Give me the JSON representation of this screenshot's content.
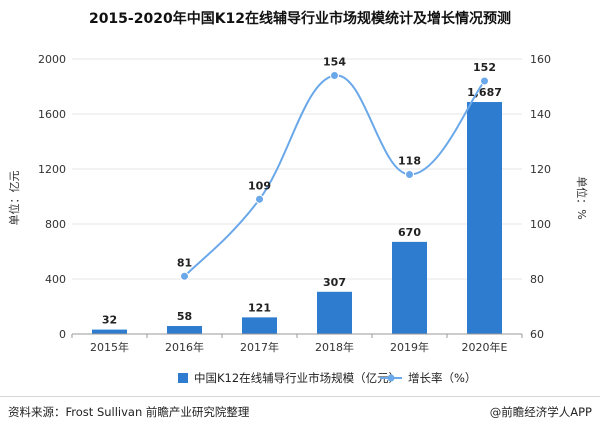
{
  "chart_data": {
    "type": "bar",
    "title": "2015-2020年中国K12在线辅导行业市场规模统计及增长情况预测",
    "categories": [
      "2015年",
      "2016年",
      "2017年",
      "2018年",
      "2019年",
      "2020年E"
    ],
    "series": [
      {
        "name": "中国K12在线辅导行业市场规模（亿元）",
        "type": "bar",
        "axis": "left",
        "color": "#2e7cd0",
        "values": [
          32,
          58,
          121,
          307,
          670,
          1687
        ],
        "labels": [
          "32",
          "58",
          "121",
          "307",
          "670",
          "1,687"
        ]
      },
      {
        "name": "增长率（%）",
        "type": "line",
        "axis": "right",
        "color": "#6aa8ea",
        "values": [
          null,
          81,
          109,
          154,
          118,
          152
        ],
        "labels": [
          "",
          "81",
          "109",
          "154",
          "118",
          "152"
        ]
      }
    ],
    "ylabel": "单位：亿元",
    "y2label": "单位：%",
    "ylim": [
      0,
      2000
    ],
    "y2lim": [
      60,
      160
    ],
    "yticks": [
      "0",
      "400",
      "800",
      "1200",
      "1600",
      "2000"
    ],
    "y2ticks": [
      "60",
      "80",
      "100",
      "120",
      "140",
      "160"
    ]
  },
  "footer": {
    "source": "资料来源：Frost Sullivan 前瞻产业研究院整理",
    "brand": "@前瞻经济学人APP"
  }
}
